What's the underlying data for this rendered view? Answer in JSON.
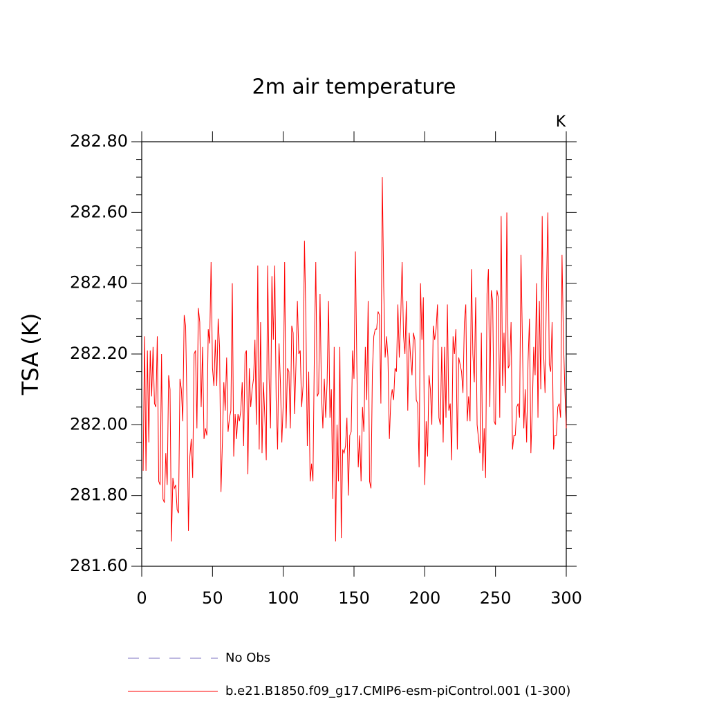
{
  "chart_data": {
    "type": "line",
    "title": "2m air temperature",
    "units": "K",
    "y_label": "TSA  (K)",
    "x": [
      1,
      2,
      3,
      4,
      5,
      6,
      7,
      8,
      9,
      10,
      11,
      12,
      13,
      14,
      15,
      16,
      17,
      18,
      19,
      20,
      21,
      22,
      23,
      24,
      25,
      26,
      27,
      28,
      29,
      30,
      31,
      32,
      33,
      34,
      35,
      36,
      37,
      38,
      39,
      40,
      41,
      42,
      43,
      44,
      45,
      46,
      47,
      48,
      49,
      50,
      51,
      52,
      53,
      54,
      55,
      56,
      57,
      58,
      59,
      60,
      61,
      62,
      63,
      64,
      65,
      66,
      67,
      68,
      69,
      70,
      71,
      72,
      73,
      74,
      75,
      76,
      77,
      78,
      79,
      80,
      81,
      82,
      83,
      84,
      85,
      86,
      87,
      88,
      89,
      90,
      91,
      92,
      93,
      94,
      95,
      96,
      97,
      98,
      99,
      100,
      101,
      102,
      103,
      104,
      105,
      106,
      107,
      108,
      109,
      110,
      111,
      112,
      113,
      114,
      115,
      116,
      117,
      118,
      119,
      120,
      121,
      122,
      123,
      124,
      125,
      126,
      127,
      128,
      129,
      130,
      131,
      132,
      133,
      134,
      135,
      136,
      137,
      138,
      139,
      140,
      141,
      142,
      143,
      144,
      145,
      146,
      147,
      148,
      149,
      150,
      151,
      152,
      153,
      154,
      155,
      156,
      157,
      158,
      159,
      160,
      161,
      162,
      163,
      164,
      165,
      166,
      167,
      168,
      169,
      170,
      171,
      172,
      173,
      174,
      175,
      176,
      177,
      178,
      179,
      180,
      181,
      182,
      183,
      184,
      185,
      186,
      187,
      188,
      189,
      190,
      191,
      192,
      193,
      194,
      195,
      196,
      197,
      198,
      199,
      200,
      201,
      202,
      203,
      204,
      205,
      206,
      207,
      208,
      209,
      210,
      211,
      212,
      213,
      214,
      215,
      216,
      217,
      218,
      219,
      220,
      221,
      222,
      223,
      224,
      225,
      226,
      227,
      228,
      229,
      230,
      231,
      232,
      233,
      234,
      235,
      236,
      237,
      238,
      239,
      240,
      241,
      242,
      243,
      244,
      245,
      246,
      247,
      248,
      249,
      250,
      251,
      252,
      253,
      254,
      255,
      256,
      257,
      258,
      259,
      260,
      261,
      262,
      263,
      264,
      265,
      266,
      267,
      268,
      269,
      270,
      271,
      272,
      273,
      274,
      275,
      276,
      277,
      278,
      279,
      280,
      281,
      282,
      283,
      284,
      285,
      286,
      287,
      288,
      289,
      290,
      291,
      292,
      293,
      294,
      295,
      296,
      297,
      298,
      299,
      300
    ],
    "series": [
      {
        "name": "b.e21.B1850.f09_g17.CMIP6-esm-piControl.001 (1-300)",
        "color": "#ff0000",
        "values": [
          281.87,
          282.25,
          281.87,
          282.21,
          281.95,
          282.21,
          282.08,
          282.22,
          282.06,
          282.05,
          282.25,
          281.84,
          281.83,
          282.2,
          281.79,
          281.78,
          281.92,
          281.83,
          282.14,
          282.1,
          281.67,
          281.85,
          281.82,
          281.83,
          281.76,
          281.75,
          282.13,
          282.1,
          282.01,
          282.31,
          282.28,
          282.05,
          281.7,
          281.91,
          281.96,
          281.85,
          282.2,
          282.21,
          281.99,
          282.33,
          282.29,
          282.05,
          282.22,
          281.96,
          281.99,
          281.97,
          282.27,
          282.23,
          282.46,
          282.16,
          282.11,
          282.24,
          282.11,
          282.3,
          282.22,
          281.81,
          281.95,
          282.12,
          282.04,
          282.19,
          281.98,
          282.02,
          282.04,
          282.4,
          281.91,
          282.03,
          281.96,
          282.03,
          282.01,
          282.04,
          282.12,
          281.94,
          282.2,
          282.21,
          281.86,
          282.16,
          282.05,
          282.1,
          282.13,
          282.24,
          282.0,
          282.45,
          281.93,
          282.29,
          281.92,
          282.12,
          282.02,
          281.9,
          282.45,
          282.13,
          281.99,
          282.42,
          282.24,
          282.45,
          282.07,
          281.93,
          282.23,
          282.12,
          281.95,
          282.06,
          282.46,
          281.99,
          282.16,
          282.15,
          281.99,
          282.28,
          282.26,
          282.03,
          282.17,
          282.35,
          282.2,
          282.21,
          282.05,
          282.11,
          282.52,
          282.3,
          281.94,
          282.15,
          281.84,
          281.89,
          281.84,
          282.21,
          282.46,
          282.08,
          282.09,
          282.37,
          282.09,
          281.99,
          282.13,
          282.02,
          282.12,
          282.35,
          282.02,
          282.1,
          281.79,
          282.22,
          281.67,
          282.0,
          281.84,
          282.22,
          281.68,
          281.93,
          281.92,
          281.94,
          282.02,
          281.8,
          281.97,
          281.98,
          282.21,
          282.13,
          282.49,
          282.17,
          281.88,
          281.97,
          281.84,
          282.05,
          281.98,
          282.22,
          282.07,
          282.35,
          281.84,
          281.82,
          282.15,
          282.25,
          282.27,
          282.27,
          282.32,
          282.31,
          282.06,
          282.7,
          282.39,
          282.19,
          282.25,
          282.19,
          281.96,
          282.07,
          282.1,
          282.07,
          282.16,
          282.15,
          282.34,
          282.19,
          282.3,
          282.46,
          282.25,
          282.2,
          282.35,
          282.04,
          282.26,
          282.19,
          282.14,
          282.26,
          282.24,
          282.07,
          282.06,
          281.88,
          282.4,
          282.24,
          282.36,
          281.83,
          282.01,
          281.91,
          282.14,
          282.1,
          282.0,
          282.28,
          282.24,
          282.27,
          282.34,
          282.02,
          282.0,
          282.22,
          281.95,
          282.22,
          282.02,
          282.34,
          282.04,
          282.06,
          281.9,
          282.25,
          282.2,
          282.27,
          281.93,
          282.19,
          282.17,
          282.15,
          282.09,
          282.29,
          282.34,
          282.01,
          282.08,
          282.01,
          282.44,
          282.2,
          282.12,
          282.36,
          282.0,
          281.96,
          281.92,
          282.26,
          281.87,
          281.99,
          281.85,
          282.37,
          282.44,
          282.05,
          282.38,
          282.35,
          282.01,
          282.0,
          282.38,
          282.36,
          282.02,
          282.59,
          282.11,
          282.26,
          282.09,
          282.6,
          282.16,
          282.17,
          282.29,
          281.93,
          281.97,
          281.97,
          282.05,
          282.06,
          282.02,
          282.48,
          282.24,
          281.99,
          282.1,
          281.95,
          282.18,
          282.3,
          281.92,
          282.05,
          282.22,
          282.14,
          282.4,
          282.02,
          282.35,
          282.1,
          282.59,
          282.2,
          282.09,
          282.38,
          282.6,
          282.17,
          282.15,
          282.29,
          281.93,
          281.97,
          281.97,
          282.05,
          282.06,
          282.02,
          282.48,
          282.24,
          282.1,
          281.99
        ]
      }
    ],
    "legend": [
      {
        "name": "No Obs",
        "color": "#7b72c0",
        "style": "dashed"
      }
    ],
    "xlim": [
      0,
      300
    ],
    "xticks": [
      0,
      50,
      100,
      150,
      200,
      250,
      300
    ],
    "ylim": [
      281.6,
      282.8
    ],
    "yticks": [
      {
        "value": 281.6,
        "label": "281.60"
      },
      {
        "value": 281.8,
        "label": "281.80"
      },
      {
        "value": 282.0,
        "label": "282.00"
      },
      {
        "value": 282.2,
        "label": "282.20"
      },
      {
        "value": 282.4,
        "label": "282.40"
      },
      {
        "value": 282.6,
        "label": "282.60"
      },
      {
        "value": 282.8,
        "label": "282.80"
      }
    ],
    "yminorticks": [
      281.65,
      281.7,
      281.75,
      281.85,
      281.9,
      281.95,
      282.05,
      282.1,
      282.15,
      282.25,
      282.3,
      282.35,
      282.45,
      282.5,
      282.55,
      282.65,
      282.7,
      282.75
    ],
    "grid": false
  }
}
